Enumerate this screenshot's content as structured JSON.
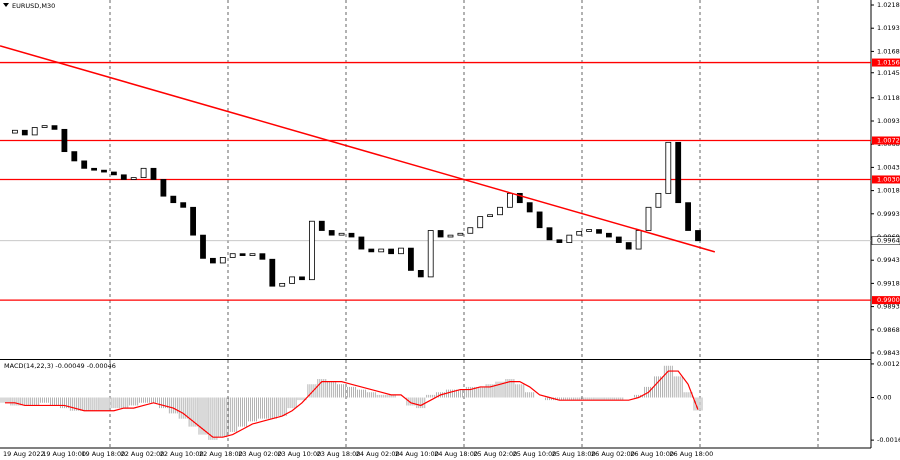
{
  "chart_data": {
    "type": "candlestick",
    "title": "EURUSD,M30",
    "x_labels": [
      "19 Aug 2022",
      "19 Aug 10:00",
      "19 Aug 18:00",
      "22 Aug 02:00",
      "22 Aug 10:00",
      "22 Aug 18:00",
      "23 Aug 02:00",
      "23 Aug 10:00",
      "23 Aug 18:00",
      "24 Aug 02:00",
      "24 Aug 10:00",
      "24 Aug 18:00",
      "25 Aug 02:00",
      "25 Aug 10:00",
      "25 Aug 18:00",
      "26 Aug 02:00",
      "26 Aug 10:00",
      "26 Aug 18:00"
    ],
    "close": [
      1.008,
      1.0083,
      1.0078,
      1.0086,
      1.0088,
      1.0084,
      1.006,
      1.005,
      1.0042,
      1.004,
      1.0038,
      1.0035,
      1.003,
      1.0032,
      1.0042,
      1.003,
      1.0012,
      1.0005,
      1.0,
      0.997,
      0.9945,
      0.994,
      0.9946,
      0.995,
      0.9948,
      0.995,
      0.9944,
      0.9915,
      0.9918,
      0.9925,
      0.9922,
      0.9985,
      0.9975,
      0.997,
      0.9972,
      0.9968,
      0.9955,
      0.9952,
      0.9955,
      0.995,
      0.9956,
      0.9932,
      0.9925,
      0.9975,
      0.9968,
      0.997,
      0.9972,
      0.9978,
      0.999,
      0.9992,
      1.0,
      1.0015,
      1.0005,
      0.9995,
      0.9978,
      0.9965,
      0.9962,
      0.997,
      0.9974,
      0.9976,
      0.9972,
      0.9968,
      0.9962,
      0.9955,
      0.9975,
      1.0,
      1.0015,
      1.007,
      1.0005,
      0.9975,
      0.9964
    ],
    "ylim": [
      0.98376,
      1.02234
    ],
    "yticks": [
      1.0218,
      1.0193,
      1.0168,
      1.0145,
      1.0118,
      1.0093,
      1.0068,
      1.0043,
      1.0018,
      0.9993,
      0.9968,
      0.9943,
      0.9918,
      0.9893,
      0.9868,
      0.9843
    ],
    "levels": [
      1.0156,
      1.0072,
      {
        "value": 1.003,
        "label": "1.0030"
      },
      {
        "value": 0.99,
        "label": "0.9900"
      }
    ],
    "level_color": "#ff0000",
    "current_price": 0.9964,
    "trendline": {
      "x": [
        -0.5,
        71.7
      ],
      "y": [
        1.0174,
        0.9952
      ]
    },
    "macd": {
      "label": "MACD(14,22,3) -0.00049 -0.00046",
      "histogram": [
        -0.0002,
        -0.0003,
        -0.0003,
        -0.0003,
        -0.0002,
        -0.0003,
        -0.0004,
        -0.0005,
        -0.0005,
        -0.0005,
        -0.0005,
        -0.0004,
        -0.0004,
        -0.0003,
        -0.0002,
        -0.0002,
        -0.0004,
        -0.0006,
        -0.0008,
        -0.0011,
        -0.0014,
        -0.0016,
        -0.0015,
        -0.0013,
        -0.0011,
        -0.0009,
        -0.0008,
        -0.0008,
        -0.0007,
        -0.0004,
        -0.0001,
        0.0005,
        0.0007,
        0.0006,
        0.0005,
        0.0004,
        0.0003,
        0.0002,
        0.0001,
        0.0001,
        0.0,
        -0.0003,
        -0.0004,
        0.0001,
        0.0002,
        0.0003,
        0.0003,
        0.0004,
        0.0004,
        0.0005,
        0.0006,
        0.0007,
        0.0005,
        0.0002,
        0.0,
        -0.0001,
        -0.0001,
        -0.0001,
        -0.0001,
        -0.0001,
        -0.0001,
        -0.0001,
        -0.0001,
        0.0,
        0.0001,
        0.0004,
        0.0008,
        0.0012,
        0.0008,
        0.0002,
        -0.00049
      ],
      "signal": [
        -0.0002,
        -0.0002,
        -0.0003,
        -0.0003,
        -0.0003,
        -0.0003,
        -0.0003,
        -0.0004,
        -0.0005,
        -0.0005,
        -0.0005,
        -0.0005,
        -0.0004,
        -0.0004,
        -0.0003,
        -0.0002,
        -0.0003,
        -0.0004,
        -0.0006,
        -0.0009,
        -0.0012,
        -0.0015,
        -0.0015,
        -0.0014,
        -0.0012,
        -0.001,
        -0.0009,
        -0.0008,
        -0.0007,
        -0.0005,
        -0.0002,
        0.0002,
        0.0006,
        0.0006,
        0.0006,
        0.0005,
        0.0004,
        0.0003,
        0.0002,
        0.0001,
        0.0001,
        -0.0002,
        -0.0003,
        -0.0001,
        0.0001,
        0.0002,
        0.0003,
        0.0003,
        0.0004,
        0.0004,
        0.0005,
        0.0006,
        0.0006,
        0.0004,
        0.0001,
        0.0,
        -0.0001,
        -0.0001,
        -0.0001,
        -0.0001,
        -0.0001,
        -0.0001,
        -0.0001,
        -0.0001,
        0.0,
        0.0002,
        0.0006,
        0.001,
        0.001,
        0.0005,
        -0.00046
      ],
      "signal_color": "#ff0000",
      "ylim": [
        -0.00187,
        0.00138
      ],
      "yticks": [
        0.00127,
        {
          "value": 0,
          "label": "0.00"
        },
        -0.00161
      ]
    }
  }
}
